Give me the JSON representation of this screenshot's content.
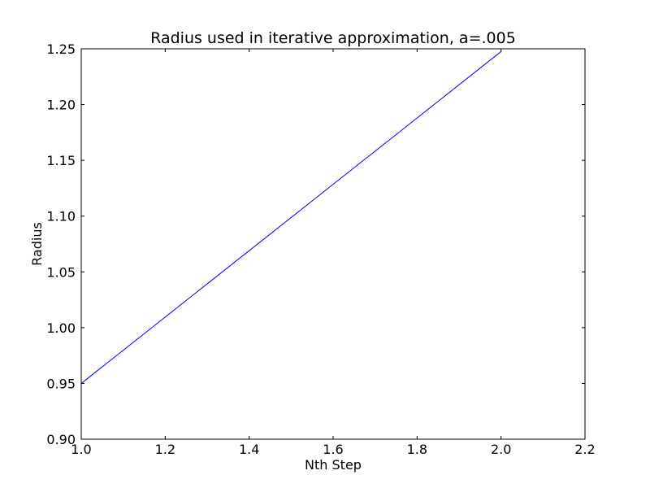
{
  "chart_data": {
    "type": "line",
    "title": "Radius used in iterative approximation, a=.005",
    "xlabel": "Nth Step",
    "ylabel": "Radius",
    "xlim": [
      1.0,
      2.2
    ],
    "ylim": [
      0.9,
      1.25
    ],
    "xticks": [
      "1.0",
      "1.2",
      "1.4",
      "1.6",
      "1.8",
      "2.0",
      "2.2"
    ],
    "yticks": [
      "0.90",
      "0.95",
      "1.00",
      "1.05",
      "1.10",
      "1.15",
      "1.20",
      "1.25"
    ],
    "grid": false,
    "series": [
      {
        "color": "#0000ff",
        "x": [
          1.0,
          2.0
        ],
        "y": [
          0.95,
          1.2475
        ]
      }
    ]
  }
}
